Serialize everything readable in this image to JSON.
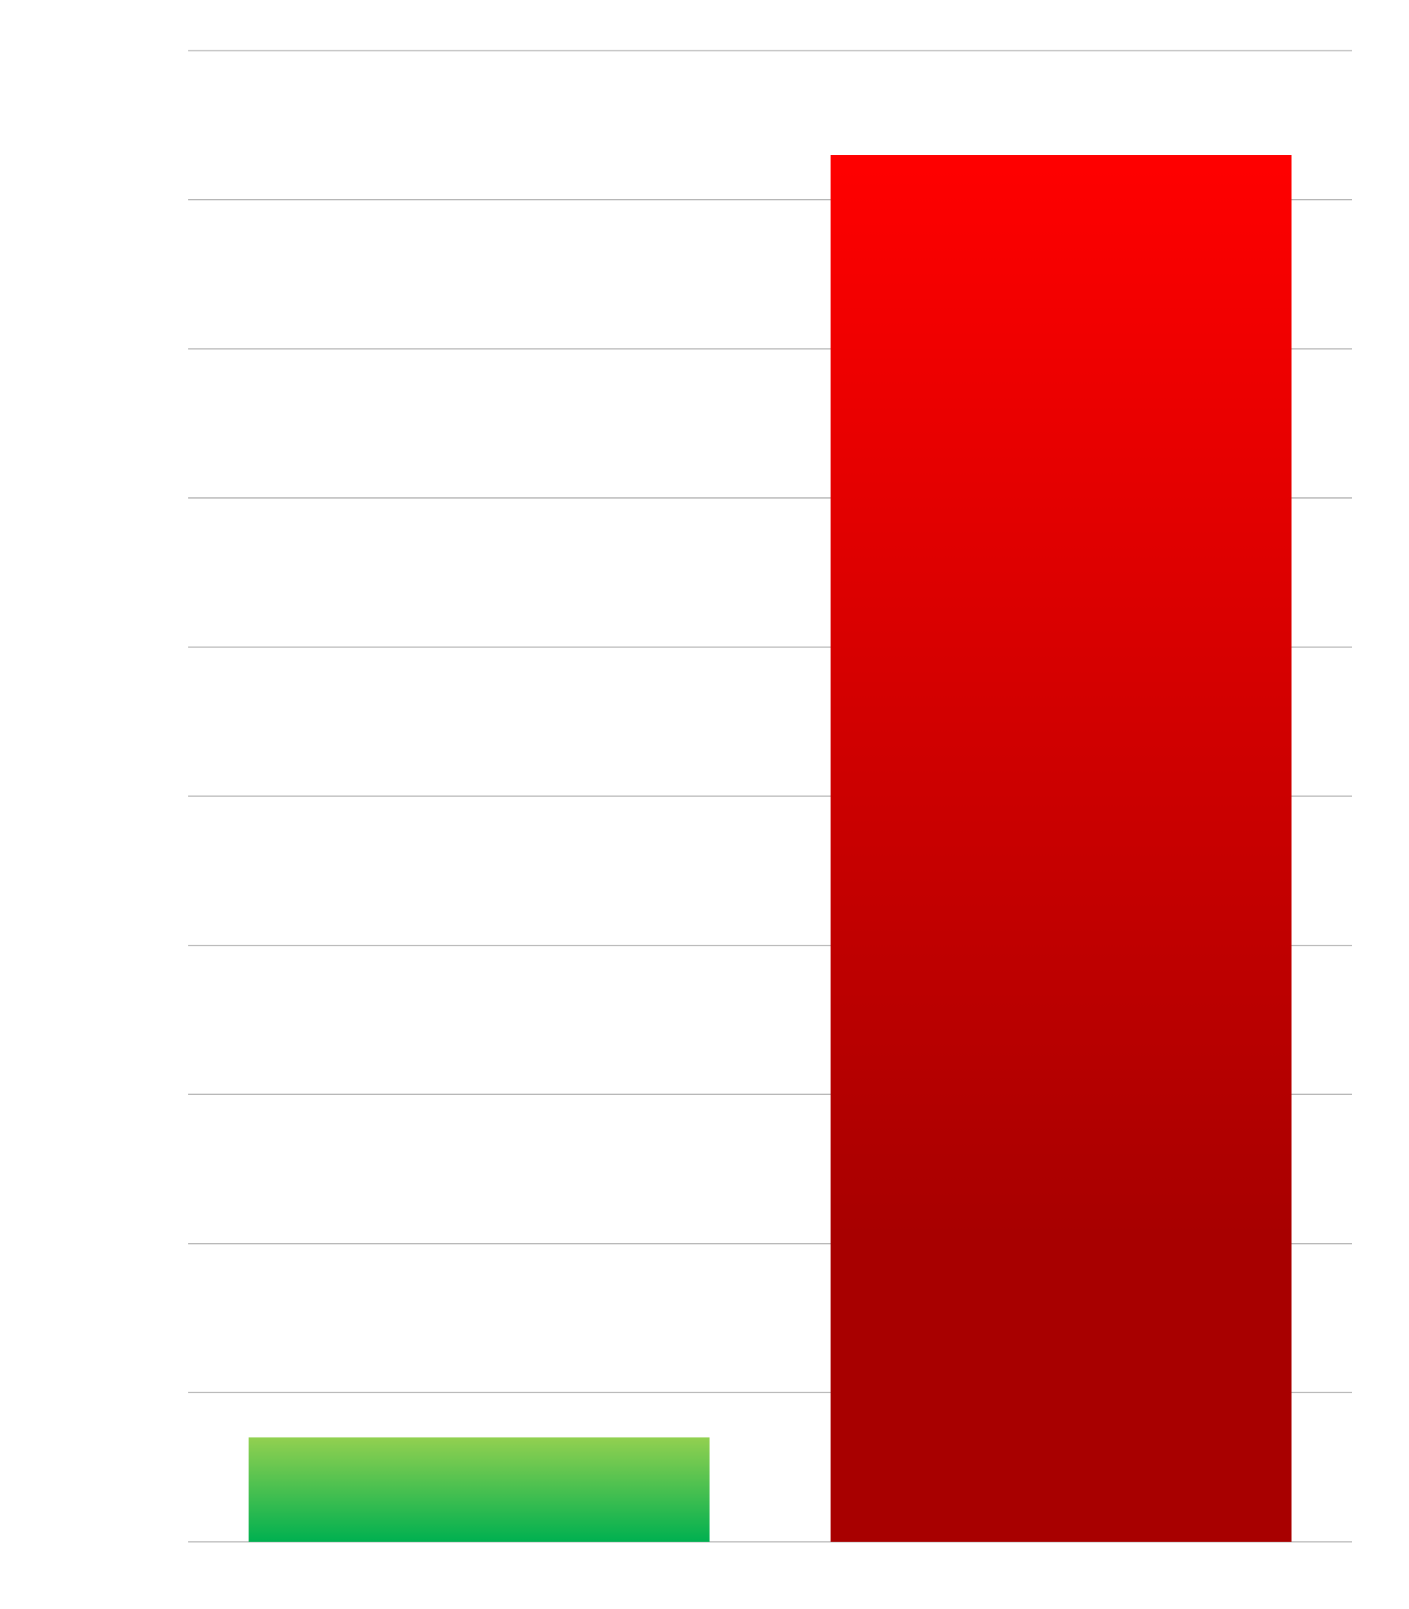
{
  "chart_data": {
    "type": "bar",
    "title": "",
    "xlabel": "",
    "ylabel": "",
    "categories": [
      "",
      ""
    ],
    "values": [
      0.7,
      9.3
    ],
    "ylim": [
      0,
      10
    ],
    "y_grid_step": 1,
    "grid": true,
    "legend": "none",
    "tick_labels_shown": false,
    "colors": [
      {
        "top": "#92d050",
        "bottom": "#00b050"
      },
      {
        "top": "#ff0000",
        "bottom": "#a80000"
      }
    ]
  }
}
